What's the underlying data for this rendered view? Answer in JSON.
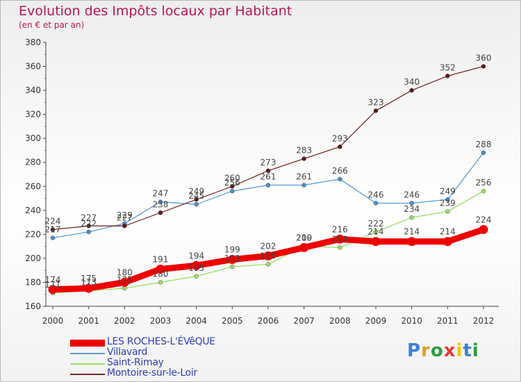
{
  "header": {
    "title": "Evolution des Impôts locaux par Habitant",
    "subtitle": "(en € et par an)"
  },
  "logo": {
    "text": "Proxiti",
    "colors": [
      "#3c7fd8",
      "#e0a020",
      "#2f9e3f",
      "#e83a30",
      "#f2c400",
      "#3c7fd8",
      "#2f9e3f"
    ]
  },
  "chart_data": {
    "type": "line",
    "title": "Evolution des Impôts locaux par Habitant",
    "subtitle": "(en € et par an)",
    "x": [
      "2000",
      "2001",
      "2002",
      "2003",
      "2004",
      "2005",
      "2006",
      "2007",
      "2008",
      "2009",
      "2010",
      "2011",
      "2012"
    ],
    "ylim": [
      160,
      380
    ],
    "yticks": [
      160,
      180,
      200,
      220,
      240,
      260,
      280,
      300,
      320,
      340,
      360,
      380
    ],
    "grid": false,
    "legend_position": "bottom-left",
    "series": [
      {
        "name": "LES ROCHES-L'ÉVêQUE",
        "color": "#ee0000",
        "values": [
          174,
          175,
          180,
          191,
          194,
          199,
          202,
          209,
          216,
          214,
          214,
          214,
          224
        ]
      },
      {
        "name": "Villavard",
        "color": "#5b9bd5",
        "values": [
          217,
          222,
          229,
          247,
          245,
          256,
          261,
          261,
          266,
          246,
          246,
          249,
          288
        ]
      },
      {
        "name": "Saint-Rimay",
        "color": "#99dd66",
        "values": [
          171,
          173,
          175,
          180,
          185,
          193,
          195,
          210,
          209,
          222,
          234,
          239,
          256
        ]
      },
      {
        "name": "Montoire-sur-le-Loir",
        "color": "#7a2a2a",
        "values": [
          224,
          227,
          227,
          238,
          249,
          260,
          273,
          283,
          293,
          323,
          340,
          352,
          360
        ]
      }
    ]
  }
}
